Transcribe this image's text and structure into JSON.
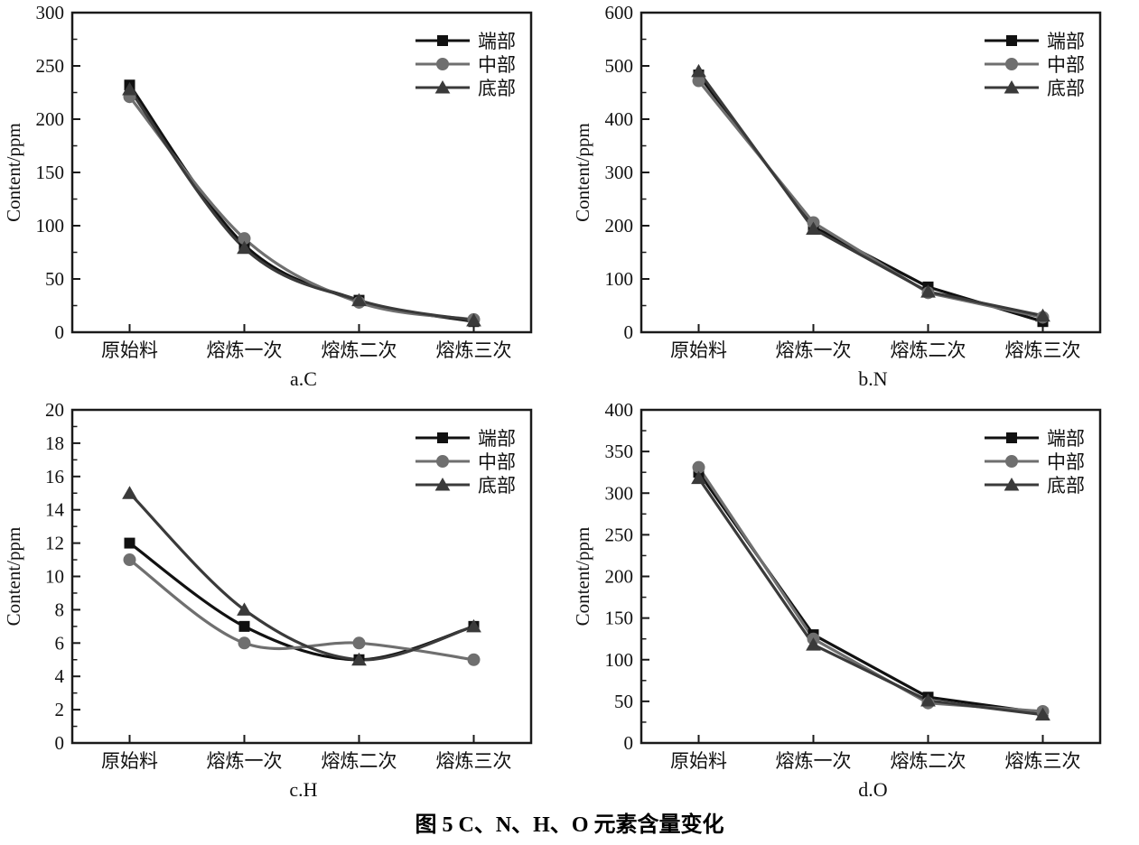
{
  "figure_caption": "图 5  C、N、H、O 元素含量变化",
  "chart_data": [
    {
      "type": "line",
      "subtitle": "a.C",
      "title": "",
      "xlabel": "",
      "ylabel": "Content/ppm",
      "categories": [
        "原始料",
        "熔炼一次",
        "熔炼二次",
        "熔炼三次"
      ],
      "ylim": [
        0,
        300
      ],
      "ytick_step": 50,
      "grid": false,
      "smooth": true,
      "legend_position": "top-right",
      "series": [
        {
          "name": "端部",
          "marker": "square",
          "color": "#111111",
          "values": [
            232,
            82,
            30,
            10
          ]
        },
        {
          "name": "中部",
          "marker": "circle",
          "color": "#6f6f6f",
          "values": [
            221,
            88,
            28,
            12
          ]
        },
        {
          "name": "底部",
          "marker": "triangle",
          "color": "#3a3a3a",
          "values": [
            228,
            79,
            30,
            11
          ]
        }
      ]
    },
    {
      "type": "line",
      "subtitle": "b.N",
      "title": "",
      "xlabel": "",
      "ylabel": "Content/ppm",
      "categories": [
        "原始料",
        "熔炼一次",
        "熔炼二次",
        "熔炼三次"
      ],
      "ylim": [
        0,
        600
      ],
      "ytick_step": 100,
      "grid": false,
      "smooth": false,
      "legend_position": "top-right",
      "series": [
        {
          "name": "端部",
          "marker": "square",
          "color": "#111111",
          "values": [
            483,
            198,
            85,
            20
          ]
        },
        {
          "name": "中部",
          "marker": "circle",
          "color": "#6f6f6f",
          "values": [
            472,
            206,
            74,
            28
          ]
        },
        {
          "name": "底部",
          "marker": "triangle",
          "color": "#3a3a3a",
          "values": [
            490,
            194,
            76,
            31
          ]
        }
      ]
    },
    {
      "type": "line",
      "subtitle": "c.H",
      "title": "",
      "xlabel": "",
      "ylabel": "Content/ppm",
      "categories": [
        "原始料",
        "熔炼一次",
        "熔炼二次",
        "熔炼三次"
      ],
      "ylim": [
        0,
        20
      ],
      "ytick_step": 2,
      "grid": false,
      "smooth": true,
      "legend_position": "top-right",
      "series": [
        {
          "name": "端部",
          "marker": "square",
          "color": "#111111",
          "values": [
            12,
            7,
            5,
            7
          ]
        },
        {
          "name": "中部",
          "marker": "circle",
          "color": "#6f6f6f",
          "values": [
            11,
            6,
            6,
            5
          ]
        },
        {
          "name": "底部",
          "marker": "triangle",
          "color": "#3a3a3a",
          "values": [
            15,
            8,
            5,
            7
          ]
        }
      ]
    },
    {
      "type": "line",
      "subtitle": "d.O",
      "title": "",
      "xlabel": "",
      "ylabel": "Content/ppm",
      "categories": [
        "原始料",
        "熔炼一次",
        "熔炼二次",
        "熔炼三次"
      ],
      "ylim": [
        0,
        400
      ],
      "ytick_step": 50,
      "grid": false,
      "smooth": false,
      "legend_position": "top-right",
      "series": [
        {
          "name": "端部",
          "marker": "square",
          "color": "#111111",
          "values": [
            325,
            130,
            55,
            36
          ]
        },
        {
          "name": "中部",
          "marker": "circle",
          "color": "#6f6f6f",
          "values": [
            331,
            125,
            48,
            38
          ]
        },
        {
          "name": "底部",
          "marker": "triangle",
          "color": "#3a3a3a",
          "values": [
            318,
            118,
            51,
            34
          ]
        }
      ]
    }
  ]
}
